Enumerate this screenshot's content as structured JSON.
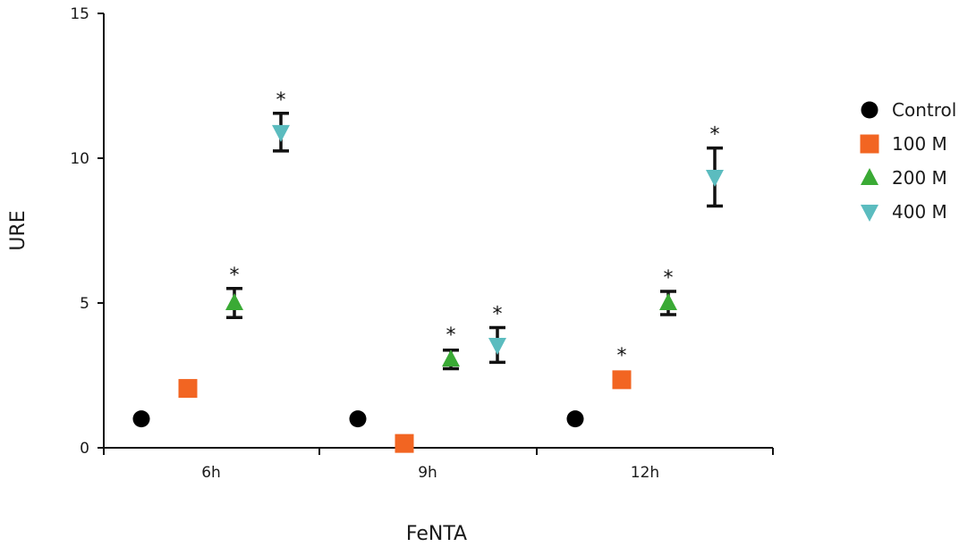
{
  "chart_data": {
    "type": "scatter",
    "title": "",
    "xlabel": "FeNTA",
    "ylabel": "URE",
    "ylim": [
      0,
      15
    ],
    "yticks": [
      0,
      5,
      10,
      15
    ],
    "categories": [
      "6h",
      "9h",
      "12h"
    ],
    "legend_position": "right",
    "series": [
      {
        "name": "Control",
        "marker": "circle",
        "color": "#000000",
        "values": [
          1.0,
          1.0,
          1.0
        ],
        "errors": [
          null,
          null,
          null
        ],
        "significant": [
          false,
          false,
          false
        ]
      },
      {
        "name": "100 M",
        "marker": "square",
        "color": "#f26522",
        "values": [
          2.05,
          0.15,
          2.35
        ],
        "errors": [
          null,
          null,
          null
        ],
        "significant": [
          false,
          false,
          true
        ]
      },
      {
        "name": "200 M",
        "marker": "triangle-up",
        "color": "#3aaa35",
        "values": [
          5.0,
          3.05,
          5.0
        ],
        "errors": [
          0.5,
          0.32,
          0.4
        ],
        "significant": [
          true,
          true,
          true
        ]
      },
      {
        "name": "400 M",
        "marker": "triangle-down",
        "color": "#5bbcbf",
        "values": [
          10.9,
          3.55,
          9.35
        ],
        "errors": [
          0.65,
          0.6,
          1.0
        ],
        "significant": [
          true,
          true,
          true
        ]
      }
    ],
    "significance_symbol": "*"
  }
}
